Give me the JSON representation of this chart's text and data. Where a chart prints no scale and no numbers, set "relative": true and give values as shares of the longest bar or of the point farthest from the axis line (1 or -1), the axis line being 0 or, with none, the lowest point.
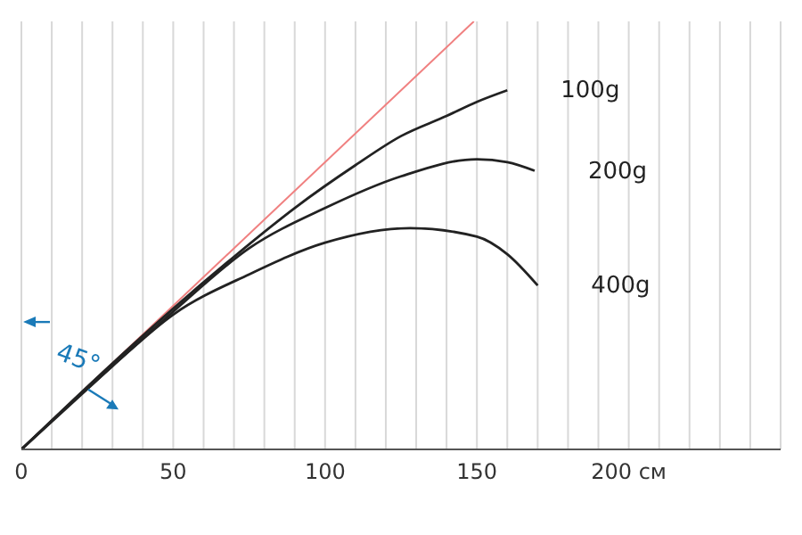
{
  "chart_data": {
    "type": "line",
    "xlim": [
      0,
      250
    ],
    "relative": true,
    "xticks": [
      0,
      {
        "value": 10,
        "label": null
      },
      {
        "value": 20,
        "label": null
      },
      {
        "value": 30,
        "label": null
      },
      {
        "value": 40,
        "label": null
      },
      50,
      {
        "value": 60,
        "label": null
      },
      {
        "value": 70,
        "label": null
      },
      {
        "value": 80,
        "label": null
      },
      {
        "value": 90,
        "label": null
      },
      100,
      {
        "value": 110,
        "label": null
      },
      {
        "value": 120,
        "label": null
      },
      {
        "value": 130,
        "label": null
      },
      {
        "value": 140,
        "label": null
      },
      150,
      {
        "value": 160,
        "label": null
      },
      {
        "value": 170,
        "label": null
      },
      {
        "value": 180,
        "label": null
      },
      {
        "value": 190,
        "label": null
      },
      {
        "value": 200,
        "label": "200 см"
      },
      {
        "value": 210,
        "label": null
      },
      {
        "value": 220,
        "label": null
      },
      {
        "value": 230,
        "label": null
      },
      {
        "value": 240,
        "label": null
      },
      {
        "value": 250,
        "label": null
      }
    ],
    "tick_labels": "x",
    "grid": true,
    "legend": false,
    "marker": "none",
    "line_style": "solid",
    "annotations": [
      "45°"
    ],
    "series": [
      {
        "color": "#f08080",
        "x": [
          0,
          149
        ],
        "values": [
          0,
          1
        ]
      },
      {
        "name": "100g",
        "color": "#222222",
        "x": [
          0,
          30,
          50,
          70,
          90,
          110,
          125,
          140,
          150,
          160
        ],
        "values": [
          0,
          0.201,
          0.329,
          0.45,
          0.564,
          0.664,
          0.732,
          0.779,
          0.812,
          0.839
        ]
      },
      {
        "name": "200g",
        "color": "#222222",
        "x": [
          0,
          30,
          50,
          75,
          100,
          125,
          150,
          160,
          169
        ],
        "values": [
          0,
          0.195,
          0.322,
          0.47,
          0.564,
          0.638,
          0.678,
          0.671,
          0.651
        ]
      },
      {
        "name": "400g",
        "color": "#222222",
        "x": [
          0,
          30,
          50,
          75,
          100,
          128,
          150,
          160,
          170
        ],
        "values": [
          0,
          0.195,
          0.315,
          0.409,
          0.483,
          0.517,
          0.497,
          0.456,
          0.383
        ]
      }
    ]
  }
}
